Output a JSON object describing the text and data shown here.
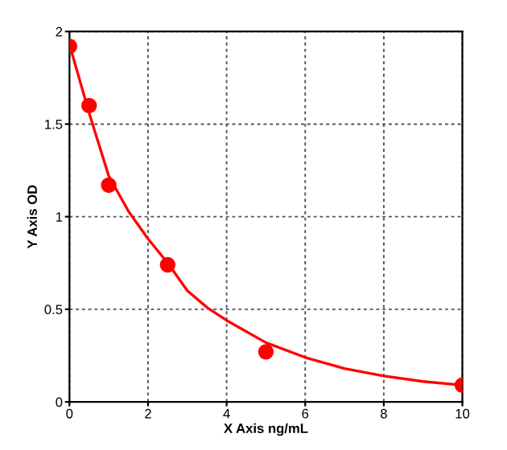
{
  "chart_data": {
    "type": "scatter",
    "xlabel": "X Axis ng/mL",
    "ylabel": "Y Axis OD",
    "xlim": [
      0,
      10
    ],
    "ylim": [
      0,
      2
    ],
    "xticks": [
      0,
      2,
      4,
      6,
      8,
      10
    ],
    "yticks": [
      0,
      0.5,
      1,
      1.5,
      2
    ],
    "grid": true,
    "marker": "circle",
    "series": [
      {
        "color": "#ff0000",
        "x": [
          0,
          0.5,
          1,
          2.5,
          5,
          10
        ],
        "values": [
          1.92,
          1.6,
          1.17,
          0.74,
          0.27,
          0.09
        ]
      },
      {
        "type": "line",
        "color": "#ff0000",
        "marker": "none",
        "line_style": "solid",
        "x": [
          0,
          0.5,
          1,
          1.5,
          2,
          2.5,
          3,
          3.5,
          4,
          5,
          6,
          7,
          8,
          9,
          10
        ],
        "values": [
          1.93,
          1.56,
          1.22,
          1.03,
          0.88,
          0.75,
          0.6,
          0.51,
          0.44,
          0.32,
          0.24,
          0.18,
          0.14,
          0.11,
          0.09
        ]
      }
    ]
  }
}
